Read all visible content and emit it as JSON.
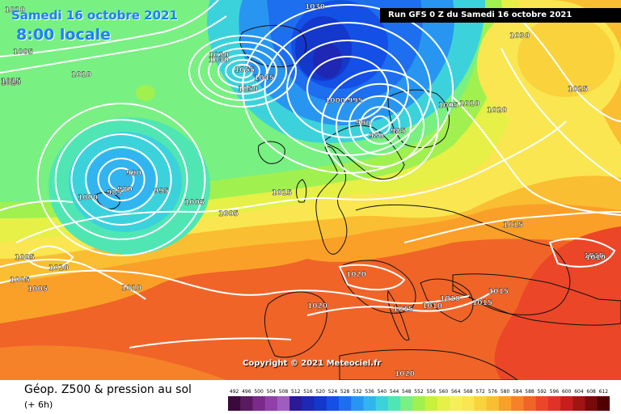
{
  "header": {
    "date": "Samedi 16 octobre 2021",
    "time": "8:00 locale",
    "run": "Run GFS 0 Z du Samedi 16 octobre 2021"
  },
  "copyright": "Copyright © 2021 Meteociel.fr",
  "footer": {
    "title": "Géop. Z500 & pression au sol",
    "subtitle": "(+ 6h)"
  },
  "legend": {
    "ticks": [
      "492",
      "496",
      "500",
      "504",
      "508",
      "512",
      "516",
      "520",
      "524",
      "528",
      "532",
      "536",
      "540",
      "544",
      "548",
      "552",
      "556",
      "560",
      "564",
      "568",
      "572",
      "576",
      "580",
      "584",
      "588",
      "592",
      "596",
      "600",
      "604",
      "608",
      "612"
    ],
    "colors": [
      "#3a0a3a",
      "#5a1a62",
      "#7a2a8a",
      "#9040aa",
      "#a05cc0",
      "#2a1a96",
      "#1e28b4",
      "#1437cc",
      "#1450e6",
      "#1e6ef0",
      "#2896f0",
      "#32b4f0",
      "#3cd2dc",
      "#50e6b4",
      "#78f082",
      "#a0f050",
      "#c8f03c",
      "#e6f046",
      "#f5f05a",
      "#fae650",
      "#fad23c",
      "#fabe32",
      "#faa028",
      "#f58228",
      "#f06428",
      "#eb4628",
      "#e13228",
      "#c81e1e",
      "#a01414",
      "#780a0a",
      "#500000"
    ]
  },
  "pressure_labels": [
    "1010",
    "1030",
    "1030",
    "1005",
    "1010",
    "1020",
    "1015",
    "1030",
    "1055",
    "1045",
    "1050",
    "1040",
    "1000",
    "995",
    "1005",
    "1010",
    "1020",
    "1025",
    "990",
    "980",
    "985",
    "990",
    "980",
    "995",
    "985",
    "1000",
    "1005",
    "1005",
    "1015",
    "1015",
    "1010",
    "1005",
    "1005",
    "1005",
    "1010",
    "1020",
    "1020",
    "1015",
    "1010",
    "1010",
    "1015",
    "1015",
    "1020",
    "1010",
    "1010"
  ],
  "pressure_centers": [
    "990",
    "980",
    "995",
    "985"
  ]
}
